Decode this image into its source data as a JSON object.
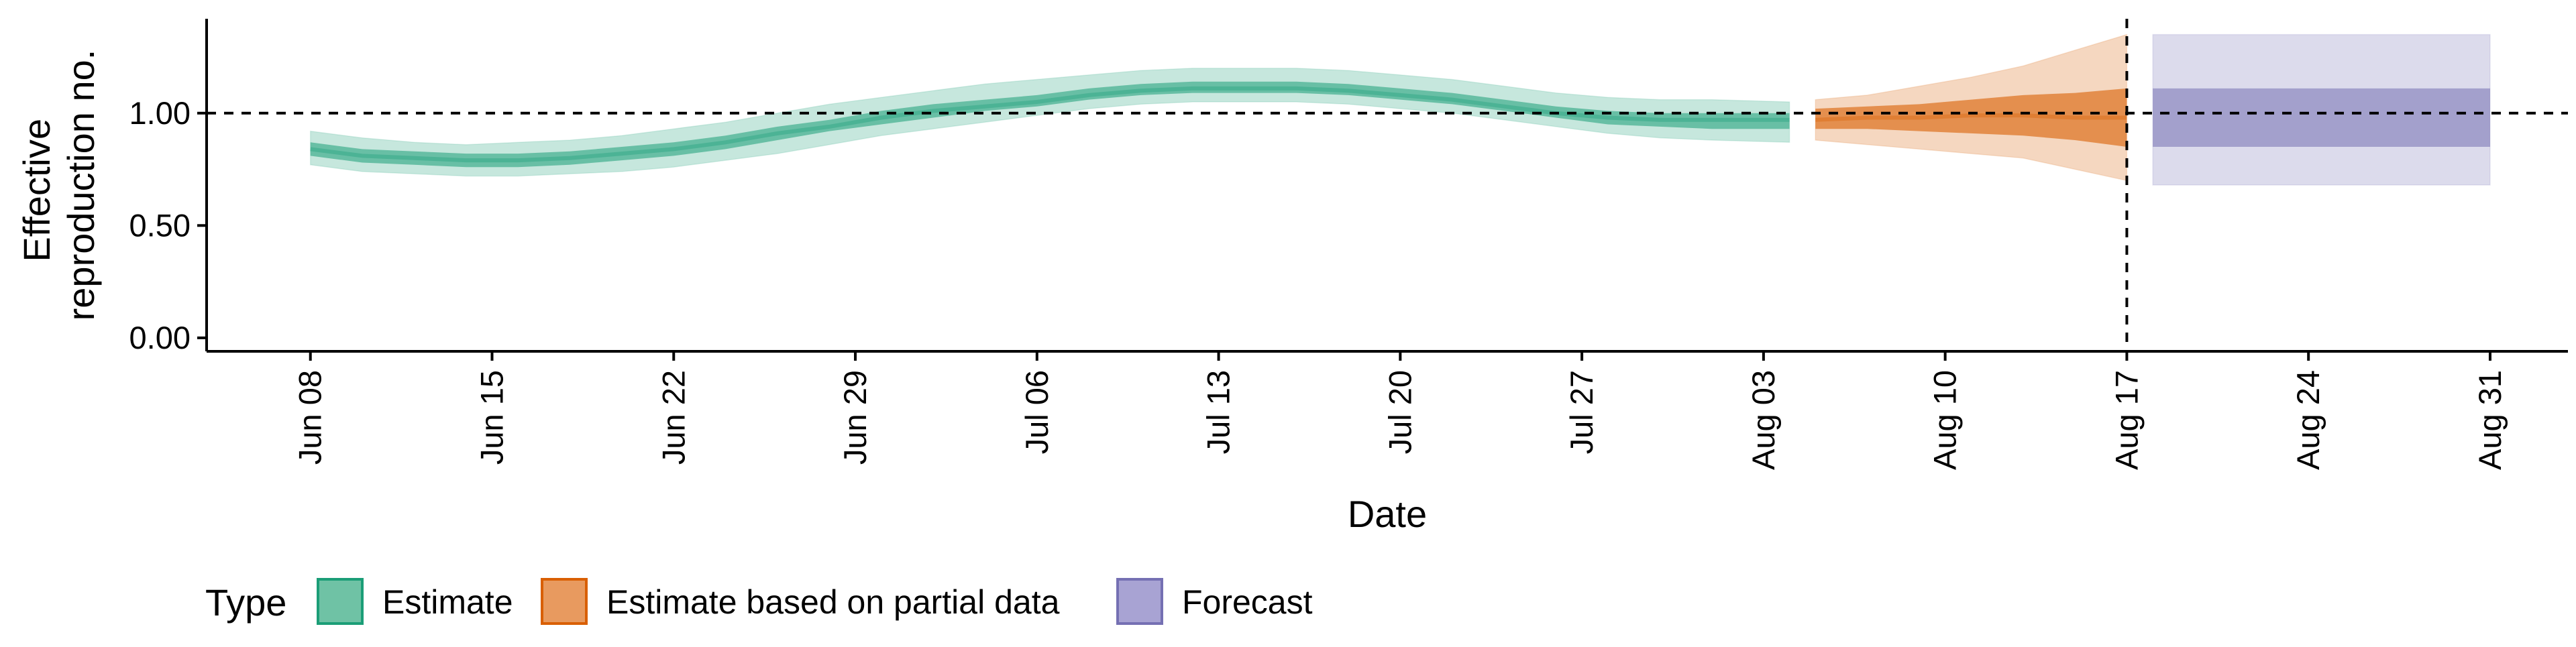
{
  "chart_data": {
    "type": "area",
    "xlabel": "Date",
    "ylabel_lines": [
      "Effective",
      "reproduction no."
    ],
    "x_domain": [
      "2020-06-04",
      "2020-09-03"
    ],
    "ylim": [
      -0.06,
      1.42
    ],
    "y_ticks": [
      {
        "value": 0.0,
        "label": "0.00"
      },
      {
        "value": 0.5,
        "label": "0.50"
      },
      {
        "value": 1.0,
        "label": "1.00"
      }
    ],
    "x_ticks": [
      {
        "date": "2020-06-08",
        "label": "Jun 08"
      },
      {
        "date": "2020-06-15",
        "label": "Jun 15"
      },
      {
        "date": "2020-06-22",
        "label": "Jun 22"
      },
      {
        "date": "2020-06-29",
        "label": "Jun 29"
      },
      {
        "date": "2020-07-06",
        "label": "Jul 06"
      },
      {
        "date": "2020-07-13",
        "label": "Jul 13"
      },
      {
        "date": "2020-07-20",
        "label": "Jul 20"
      },
      {
        "date": "2020-07-27",
        "label": "Jul 27"
      },
      {
        "date": "2020-08-03",
        "label": "Aug 03"
      },
      {
        "date": "2020-08-10",
        "label": "Aug 10"
      },
      {
        "date": "2020-08-17",
        "label": "Aug 17"
      },
      {
        "date": "2020-08-24",
        "label": "Aug 24"
      },
      {
        "date": "2020-08-31",
        "label": "Aug 31"
      }
    ],
    "reference_line_y": 1.0,
    "vertical_line_date": "2020-08-17",
    "grid": false,
    "legend": {
      "title": "Type",
      "placement": "bottom",
      "entries": [
        {
          "label": "Estimate",
          "fill": "#6fc2a5",
          "stroke": "#1b9e77"
        },
        {
          "label": "Estimate based on partial data",
          "fill": "#e89a5f",
          "stroke": "#d95f02"
        },
        {
          "label": "Forecast",
          "fill": "#a8a3d3",
          "stroke": "#7570b3"
        }
      ]
    },
    "series": [
      {
        "name": "Estimate",
        "color": "#1b9e77",
        "outer_opacity": 0.25,
        "inner_opacity": 0.55,
        "x": [
          "2020-06-08",
          "2020-06-10",
          "2020-06-12",
          "2020-06-14",
          "2020-06-16",
          "2020-06-18",
          "2020-06-20",
          "2020-06-22",
          "2020-06-24",
          "2020-06-26",
          "2020-06-28",
          "2020-06-30",
          "2020-07-02",
          "2020-07-04",
          "2020-07-06",
          "2020-07-08",
          "2020-07-10",
          "2020-07-12",
          "2020-07-14",
          "2020-07-16",
          "2020-07-18",
          "2020-07-20",
          "2020-07-22",
          "2020-07-24",
          "2020-07-26",
          "2020-07-28",
          "2020-07-30",
          "2020-08-01",
          "2020-08-04"
        ],
        "outer_lower": [
          0.77,
          0.74,
          0.73,
          0.72,
          0.72,
          0.73,
          0.74,
          0.76,
          0.79,
          0.82,
          0.86,
          0.9,
          0.93,
          0.96,
          0.99,
          1.02,
          1.04,
          1.05,
          1.05,
          1.05,
          1.04,
          1.02,
          1.0,
          0.97,
          0.94,
          0.91,
          0.89,
          0.88,
          0.87
        ],
        "inner_lower": [
          0.81,
          0.78,
          0.77,
          0.76,
          0.76,
          0.77,
          0.79,
          0.81,
          0.84,
          0.88,
          0.92,
          0.95,
          0.98,
          1.01,
          1.03,
          1.06,
          1.08,
          1.09,
          1.09,
          1.09,
          1.08,
          1.06,
          1.04,
          1.01,
          0.98,
          0.95,
          0.94,
          0.93,
          0.93
        ],
        "median": [
          0.84,
          0.81,
          0.8,
          0.79,
          0.79,
          0.8,
          0.82,
          0.84,
          0.87,
          0.91,
          0.94,
          0.98,
          1.01,
          1.03,
          1.05,
          1.08,
          1.1,
          1.11,
          1.11,
          1.11,
          1.1,
          1.08,
          1.06,
          1.03,
          1.0,
          0.98,
          0.97,
          0.97,
          0.97
        ],
        "inner_upper": [
          0.87,
          0.84,
          0.83,
          0.82,
          0.82,
          0.83,
          0.85,
          0.87,
          0.9,
          0.94,
          0.97,
          1.01,
          1.04,
          1.06,
          1.08,
          1.11,
          1.13,
          1.14,
          1.14,
          1.14,
          1.13,
          1.11,
          1.09,
          1.06,
          1.03,
          1.01,
          1.0,
          1.0,
          1.0
        ],
        "outer_upper": [
          0.92,
          0.89,
          0.87,
          0.86,
          0.87,
          0.88,
          0.9,
          0.93,
          0.96,
          1.0,
          1.04,
          1.07,
          1.1,
          1.13,
          1.15,
          1.17,
          1.19,
          1.2,
          1.2,
          1.2,
          1.19,
          1.17,
          1.15,
          1.12,
          1.09,
          1.07,
          1.06,
          1.06,
          1.05
        ]
      },
      {
        "name": "Estimate based on partial data",
        "color": "#d95f02",
        "outer_opacity": 0.25,
        "inner_opacity": 0.6,
        "x": [
          "2020-08-05",
          "2020-08-07",
          "2020-08-09",
          "2020-08-11",
          "2020-08-13",
          "2020-08-15",
          "2020-08-17"
        ],
        "outer_lower": [
          0.88,
          0.86,
          0.84,
          0.82,
          0.8,
          0.75,
          0.7
        ],
        "inner_lower": [
          0.93,
          0.93,
          0.92,
          0.91,
          0.9,
          0.88,
          0.85
        ],
        "median": [
          0.97,
          0.98,
          0.98,
          0.99,
          0.99,
          0.98,
          0.98
        ],
        "inner_upper": [
          1.02,
          1.03,
          1.04,
          1.06,
          1.08,
          1.09,
          1.11
        ],
        "outer_upper": [
          1.06,
          1.08,
          1.12,
          1.16,
          1.21,
          1.28,
          1.35
        ]
      },
      {
        "name": "Forecast",
        "color": "#7570b3",
        "outer_opacity": 0.25,
        "inner_opacity": 0.55,
        "x": [
          "2020-08-18",
          "2020-08-31"
        ],
        "outer_lower": [
          0.68,
          0.68
        ],
        "inner_lower": [
          0.85,
          0.85
        ],
        "inner_upper": [
          1.11,
          1.11
        ],
        "outer_upper": [
          1.35,
          1.35
        ]
      }
    ]
  }
}
